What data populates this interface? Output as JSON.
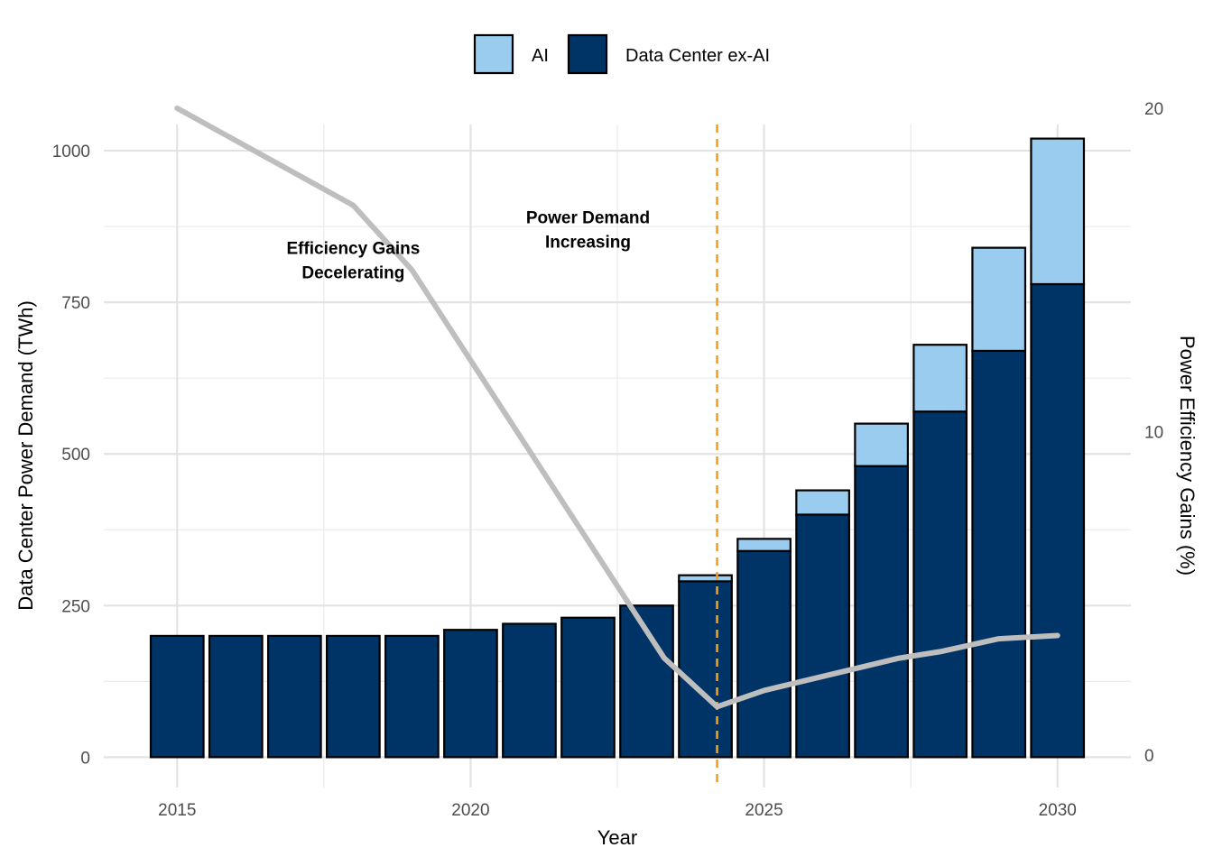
{
  "chart_data": {
    "type": "bar",
    "stacked": true,
    "x": [
      2015,
      2016,
      2017,
      2018,
      2019,
      2020,
      2021,
      2022,
      2023,
      2024,
      2025,
      2026,
      2027,
      2028,
      2029,
      2030
    ],
    "series": [
      {
        "name": "Data Center ex-AI",
        "color": "#003366",
        "values": [
          200,
          200,
          200,
          200,
          200,
          210,
          220,
          230,
          250,
          290,
          340,
          400,
          480,
          570,
          670,
          780
        ]
      },
      {
        "name": "AI",
        "color": "#99CCEE",
        "values": [
          0,
          0,
          0,
          0,
          0,
          0,
          0,
          0,
          0,
          10,
          20,
          40,
          70,
          110,
          170,
          240
        ]
      }
    ],
    "line": {
      "axis": "right",
      "color": "#BEBEBE",
      "points": [
        {
          "x": 2015,
          "y": 20
        },
        {
          "x": 2018,
          "y": 17
        },
        {
          "x": 2019,
          "y": 15
        },
        {
          "x": 2023.3,
          "y": 3
        },
        {
          "x": 2024.2,
          "y": 1.5
        },
        {
          "x": 2025,
          "y": 2
        },
        {
          "x": 2027.3,
          "y": 3
        },
        {
          "x": 2028,
          "y": 3.2
        },
        {
          "x": 2029,
          "y": 3.6
        },
        {
          "x": 2030,
          "y": 3.7
        }
      ]
    },
    "vline": {
      "x": 2024.2,
      "color": "#F0A020"
    },
    "xlabel": "Year",
    "ylabel": "Data Center Power Demand (TWh)",
    "y2label": "Power Efficiency Gains (%)",
    "xlim": [
      2013.75,
      2031.25
    ],
    "ylim": [
      -50,
      1070
    ],
    "y2lim": [
      -1.0,
      20.0
    ],
    "x_ticks": [
      2015,
      2020,
      2025,
      2030
    ],
    "y_ticks": [
      0,
      250,
      500,
      750,
      1000
    ],
    "y2_ticks": [
      0,
      10,
      20
    ],
    "annotations": [
      {
        "lines": [
          "Efficiency Gains",
          "Decelerating"
        ],
        "x": 2018,
        "y": 830
      },
      {
        "lines": [
          "Power Demand",
          "Increasing"
        ],
        "x": 2022,
        "y": 880
      }
    ],
    "legend": {
      "position": "top",
      "entries": [
        "AI",
        "Data Center ex-AI"
      ]
    },
    "grid": true
  }
}
